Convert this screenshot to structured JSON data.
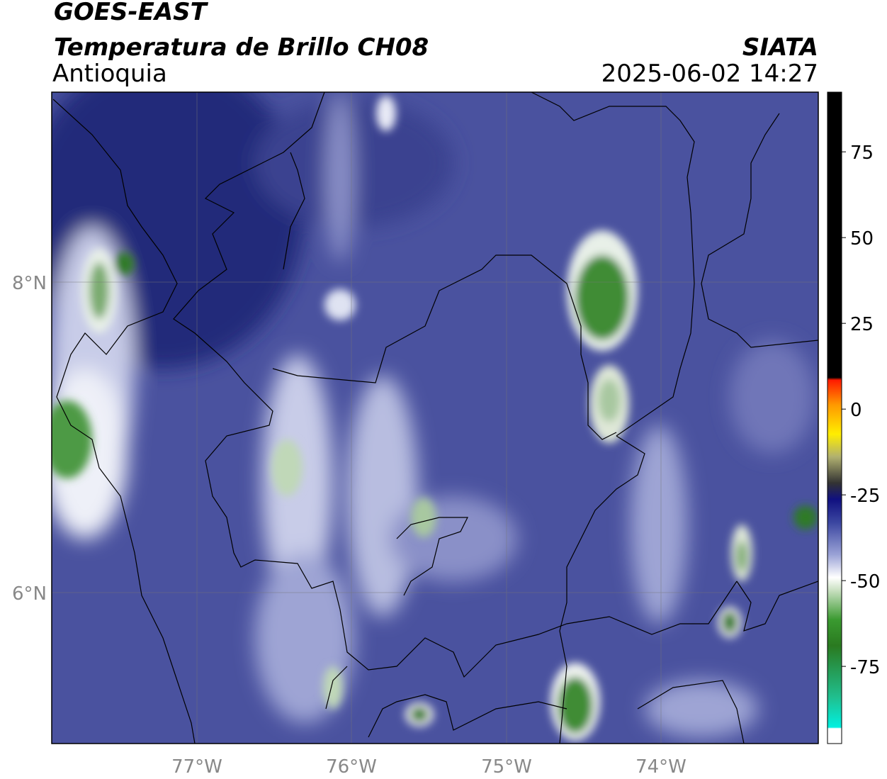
{
  "header": {
    "title": "GOES-EAST",
    "subtitle": "Temperatura de Brillo CH08",
    "region": "Antioquia",
    "source": "SIATA",
    "timestamp": "2025-06-02 14:27"
  },
  "map": {
    "lat_labels": [
      "8°N",
      "6°N"
    ],
    "lon_labels": [
      "77°W",
      "76°W",
      "75°W",
      "74°W"
    ]
  },
  "colorbar": {
    "ticks": [
      75,
      50,
      25,
      0,
      -25,
      -50,
      -75
    ],
    "lim": [
      -97.5,
      92.4
    ]
  }
}
